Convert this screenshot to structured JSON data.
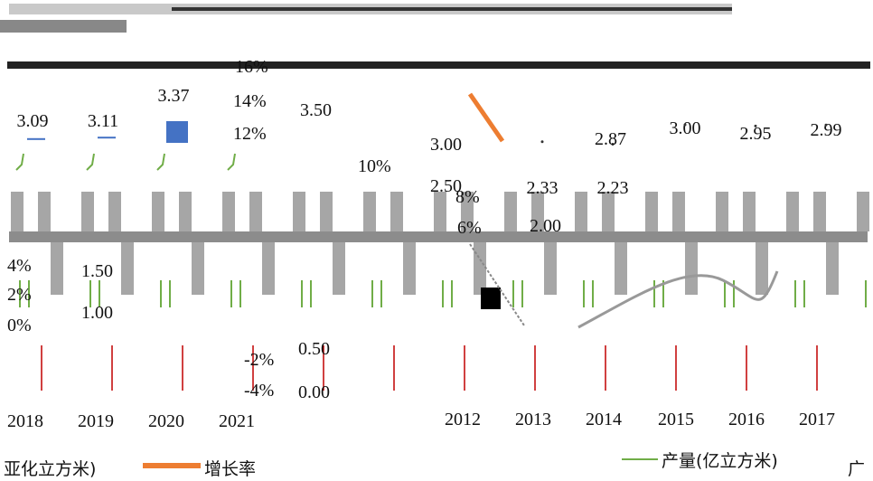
{
  "chart_data": [
    {
      "type": "bar",
      "categories": [
        "2018",
        "2019",
        "2020",
        "2021"
      ],
      "values": [
        3.09,
        3.11,
        3.37,
        null
      ],
      "data_labels": [
        "3.09",
        "3.11",
        "3.37",
        ""
      ],
      "left_axis_ticks": [
        "4%",
        "2%",
        "0%",
        "-2%",
        "-4%"
      ],
      "right_axis_ticks": [
        "1.50",
        "1.00",
        "0.50",
        "0.00"
      ],
      "upper_axis_ticks": [
        "16%",
        "14%",
        "12%",
        "10%"
      ],
      "accent": "#4472c4"
    },
    {
      "type": "line",
      "categories": [
        "2012",
        "2013",
        "2014",
        "2015",
        "2016",
        "2017"
      ],
      "values": [
        null,
        2.33,
        2.23,
        3.0,
        2.95,
        2.99
      ],
      "data_labels": [
        "",
        "2.33",
        "2.23",
        "3.00",
        "2.95",
        "2.99"
      ],
      "left_axis_ticks": [
        "3.50",
        "3.00",
        "2.50",
        "2.00"
      ],
      "upper_labels": [
        "2.87",
        "3.50"
      ],
      "pct_ticks": [
        "8%",
        "6%"
      ],
      "accent": "#ed7d31"
    }
  ],
  "legend": {
    "left_label": "亚化立方米)",
    "mid_label": "增长率",
    "right_label": "产量(亿立方米)",
    "right_tail": "广"
  },
  "colors": {
    "bar_gray": "#a6a6a6",
    "line_orange": "#ed7d31",
    "bar_blue": "#4472c4",
    "green": "#70ad47",
    "red": "#c00000"
  }
}
